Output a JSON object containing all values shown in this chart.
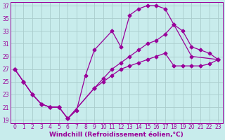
{
  "background_color": "#c8ecec",
  "grid_color": "#aacccc",
  "line_color": "#990099",
  "xlim": [
    -0.5,
    23.5
  ],
  "ylim": [
    18.5,
    37.5
  ],
  "yticks": [
    19,
    21,
    23,
    25,
    27,
    29,
    31,
    33,
    35,
    37
  ],
  "xticks": [
    0,
    1,
    2,
    3,
    4,
    5,
    6,
    7,
    8,
    9,
    10,
    11,
    12,
    13,
    14,
    15,
    16,
    17,
    18,
    19,
    20,
    21,
    22,
    23
  ],
  "xlabel": "Windchill (Refroidissement éolien,°C)",
  "series": [
    {
      "x": [
        0,
        1,
        2,
        3,
        4,
        5,
        6,
        7,
        8,
        9,
        11,
        12,
        13,
        14,
        15,
        16,
        17,
        18,
        20,
        23
      ],
      "y": [
        27,
        25,
        23,
        21.5,
        21,
        21,
        19.2,
        20.5,
        26,
        30,
        33,
        30.5,
        35.5,
        36.5,
        37,
        37,
        36.5,
        34,
        29,
        28.5
      ]
    },
    {
      "x": [
        0,
        1,
        2,
        3,
        4,
        5,
        6,
        9,
        10,
        11,
        12,
        13,
        14,
        15,
        16,
        17,
        18,
        19,
        20,
        21,
        22,
        23
      ],
      "y": [
        27,
        25,
        23,
        21.5,
        21,
        21,
        19.2,
        24,
        25.5,
        27,
        28,
        29,
        30,
        31,
        31.5,
        32.5,
        34,
        33,
        30.5,
        30,
        29.5,
        28.5
      ]
    },
    {
      "x": [
        0,
        1,
        2,
        3,
        4,
        5,
        6,
        9,
        10,
        11,
        12,
        13,
        14,
        15,
        16,
        17,
        18,
        19,
        20,
        21,
        22,
        23
      ],
      "y": [
        27,
        25,
        23,
        21.5,
        21,
        21,
        19.2,
        24,
        25,
        26,
        27,
        27.5,
        28,
        28.5,
        29,
        29.5,
        27.5,
        27.5,
        27.5,
        27.5,
        27.8,
        28.5
      ]
    }
  ],
  "marker": "D",
  "markersize": 2.5,
  "linewidth": 0.9,
  "tick_fontsize": 5.5,
  "label_fontsize": 6.5
}
